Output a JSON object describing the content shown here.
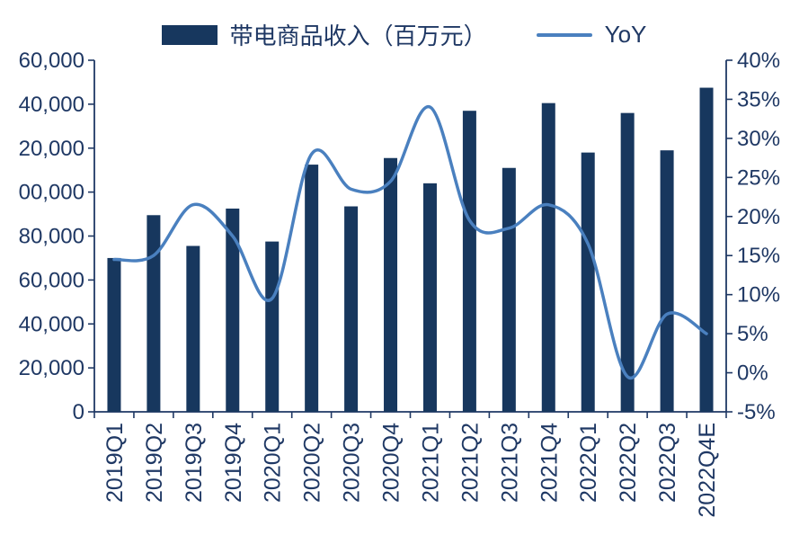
{
  "legend": {
    "bar_label": "带电商品收入（百万元）",
    "line_label": "YoY"
  },
  "colors": {
    "bar": "#17375E",
    "line": "#4A80BF",
    "text": "#1F3864",
    "axis": "#1F3864"
  },
  "chart_data": {
    "type": "bar+line",
    "title": "",
    "categories": [
      "2019Q1",
      "2019Q2",
      "2019Q3",
      "2019Q4",
      "2020Q1",
      "2020Q2",
      "2020Q3",
      "2020Q4",
      "2021Q1",
      "2021Q2",
      "2021Q3",
      "2021Q4",
      "2022Q1",
      "2022Q2",
      "2022Q3",
      "2022Q4E"
    ],
    "series": [
      {
        "name": "带电商品收入（百万元）",
        "type": "bar",
        "axis": "left",
        "values": [
          70000,
          89500,
          75500,
          92500,
          77500,
          112500,
          93500,
          115500,
          104000,
          137000,
          111000,
          140500,
          118000,
          136000,
          119000,
          147500
        ]
      },
      {
        "name": "YoY",
        "type": "line",
        "axis": "right",
        "unit": "%",
        "values": [
          14.5,
          15,
          21.5,
          17.5,
          9.5,
          28,
          23.5,
          24.5,
          34,
          19.5,
          18.5,
          21.5,
          16.5,
          -0.5,
          7.5,
          5
        ]
      }
    ],
    "left_axis": {
      "min": 0,
      "max": 160000,
      "step": 20000,
      "tick_labels_shown": [
        "0",
        "20,000",
        "40,000",
        "60,000",
        "80,000",
        "00,000",
        "20,000",
        "40,000",
        "60,000"
      ]
    },
    "right_axis": {
      "min": -5,
      "max": 40,
      "step": 5,
      "tick_labels_shown": [
        "-5%",
        "0%",
        "5%",
        "10%",
        "15%",
        "20%",
        "25%",
        "30%",
        "35%",
        "40%"
      ]
    },
    "grid": false,
    "legend_position": "top"
  }
}
